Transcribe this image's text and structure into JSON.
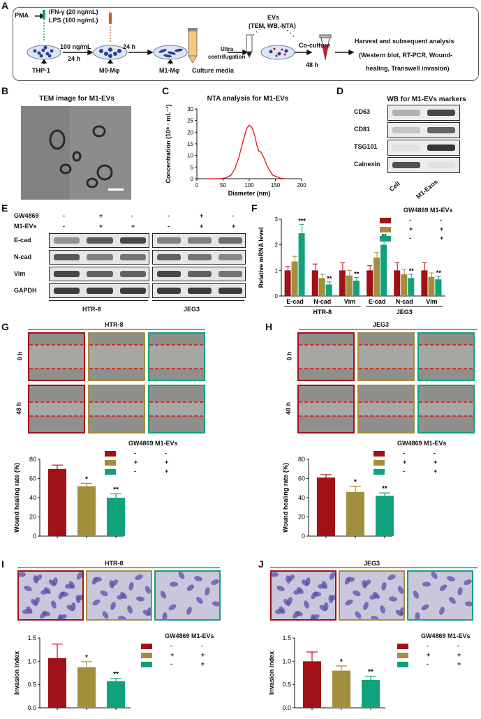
{
  "colors": {
    "red": "#a01217",
    "olive": "#a08f3c",
    "teal": "#10a27c",
    "purple": "#5b50a8"
  },
  "panels": {
    "A": {
      "label": "A",
      "pma": "PMA",
      "ifn": "IFN-γ (20 ng/mL)",
      "lps": "LPS (100 ng/mL)",
      "dose": "100 ng/mL",
      "t1": "24 h",
      "t2": "24 h",
      "thp1": "THP-1",
      "m0": "M0-Mφ",
      "m1": "M1-Mφ",
      "culture": "Culture media",
      "ultra1": "Ultra",
      "ultra2": "centrifugation",
      "evs": "EVs",
      "evs_methods": "(TEM, WB, NTA)",
      "coculture": "Co-culture",
      "t3": "48 h",
      "harvest1": "Harvest and subsequent analysis",
      "harvest2": "(Western blot, RT-PCR, Wound-",
      "harvest3": "healing, Transwell invasion)"
    },
    "B": {
      "label": "B",
      "title": "TEM image for M1-EVs"
    },
    "C": {
      "label": "C",
      "title": "NTA analysis for M1-EVs"
    },
    "D": {
      "label": "D",
      "title": "WB for M1-EVs markers",
      "rows": [
        "CD63",
        "CD81",
        "TSG101",
        "Calnexin"
      ],
      "cols": [
        "Cell",
        "M1-Exos"
      ]
    },
    "E": {
      "label": "E",
      "gw": "GW4869",
      "m1": "M1-EVs",
      "gw_signs": [
        "-",
        "+",
        "-",
        "-",
        "+",
        "-"
      ],
      "m1_signs": [
        "-",
        "+",
        "+",
        "-",
        "+",
        "+"
      ],
      "rows": [
        "E-cad",
        "N-cad",
        "Vim",
        "GAPDH"
      ],
      "cell1": "HTR-8",
      "cell2": "JEG3"
    },
    "F": {
      "label": "F"
    },
    "G": {
      "label": "G",
      "cell": "HTR-8",
      "t0": "0 h",
      "t48": "48 h"
    },
    "H": {
      "label": "H",
      "cell": "JEG3",
      "t0": "0 h",
      "t48": "48 h"
    },
    "I": {
      "label": "I",
      "cell": "HTR-8"
    },
    "J": {
      "label": "J",
      "cell": "JEG3"
    }
  },
  "legend": {
    "header": "GW4869 M1-EVs",
    "rows": [
      [
        "-",
        "-"
      ],
      [
        "+",
        "+"
      ],
      [
        "-",
        "+"
      ]
    ]
  },
  "chart_data": [
    {
      "id": "C",
      "type": "line",
      "xlabel": "Diameter (nm)",
      "ylabel": "Concentration (10⁸ · mL⁻¹)",
      "xlim": [
        0,
        200
      ],
      "ylim": [
        0,
        30
      ],
      "xticks": [
        0,
        50,
        100,
        150,
        200
      ],
      "yticks": [
        0,
        5,
        10,
        15,
        20,
        25,
        30
      ],
      "x": [
        20,
        40,
        55,
        65,
        72,
        80,
        88,
        95,
        100,
        105,
        110,
        115,
        118,
        122,
        128,
        135,
        145,
        160,
        170
      ],
      "y": [
        0,
        0,
        0.3,
        1.5,
        4,
        9,
        16,
        21.5,
        23,
        22,
        19,
        14,
        12,
        11.5,
        9,
        5,
        1.5,
        0.2,
        0
      ]
    },
    {
      "id": "F",
      "type": "bar",
      "ylabel": "Relative mRNA level",
      "ylim": [
        0,
        3
      ],
      "yticks": [
        0,
        1,
        2,
        3
      ],
      "groups": [
        "E-cad",
        "N-cad",
        "Vim",
        "E-cad",
        "N-cad",
        "Vim"
      ],
      "cells": [
        "HTR-8",
        "JEG3"
      ],
      "series": [
        {
          "values": [
            1.0,
            1.0,
            1.0,
            1.0,
            1.0,
            1.0
          ],
          "err": [
            0.15,
            0.25,
            0.3,
            0.18,
            0.3,
            0.3
          ]
        },
        {
          "values": [
            1.35,
            0.7,
            0.8,
            1.5,
            0.85,
            0.75
          ],
          "err": [
            0.2,
            0.15,
            0.2,
            0.2,
            0.2,
            0.15
          ]
        },
        {
          "values": [
            2.45,
            0.45,
            0.6,
            2.0,
            0.7,
            0.65
          ],
          "err": [
            0.35,
            0.1,
            0.12,
            0.2,
            0.15,
            0.12
          ]
        }
      ],
      "sig": [
        [
          "",
          "",
          "***"
        ],
        [
          "",
          "",
          "**"
        ],
        [
          "",
          "",
          "**"
        ],
        [
          "",
          "",
          "**"
        ],
        [
          "",
          "",
          "**"
        ],
        [
          "",
          "",
          "**"
        ]
      ]
    },
    {
      "id": "G",
      "type": "bar",
      "ylabel": "Wound healing rate (%)",
      "ylim": [
        0,
        80
      ],
      "yticks": [
        0,
        20,
        40,
        60,
        80
      ],
      "values": [
        70,
        52,
        40
      ],
      "err": [
        4,
        3,
        4
      ],
      "sig": [
        "",
        "*",
        "**"
      ]
    },
    {
      "id": "H",
      "type": "bar",
      "ylabel": "Wound healing rate (%)",
      "ylim": [
        0,
        80
      ],
      "yticks": [
        0,
        20,
        40,
        60,
        80
      ],
      "values": [
        61,
        46,
        42
      ],
      "err": [
        3,
        6,
        3
      ],
      "sig": [
        "",
        "*",
        "**"
      ]
    },
    {
      "id": "I",
      "type": "bar",
      "ylabel": "Invasion index",
      "ylim": [
        0,
        1.5
      ],
      "yticks": [
        0.0,
        0.5,
        1.0,
        1.5
      ],
      "values": [
        1.07,
        0.87,
        0.57
      ],
      "err": [
        0.3,
        0.12,
        0.06
      ],
      "sig": [
        "",
        "*",
        "**"
      ]
    },
    {
      "id": "J",
      "type": "bar",
      "ylabel": "Invasion index",
      "ylim": [
        0,
        1.5
      ],
      "yticks": [
        0.0,
        0.5,
        1.0,
        1.5
      ],
      "values": [
        1.0,
        0.8,
        0.6
      ],
      "err": [
        0.2,
        0.1,
        0.08
      ],
      "sig": [
        "",
        "*",
        "**"
      ]
    }
  ]
}
